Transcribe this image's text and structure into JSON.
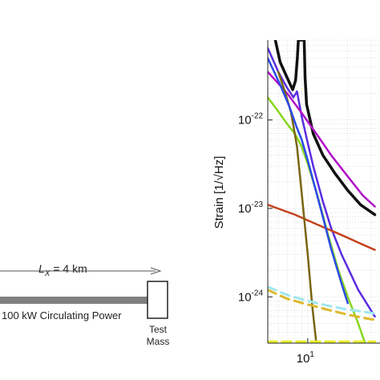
{
  "diagram": {
    "arm_label_var": "L",
    "arm_label_sub": "X",
    "arm_label_value": " = 4 km",
    "power_label": "100 kW Circulating Power",
    "mass_label_line1": "Test",
    "mass_label_line2": "Mass"
  },
  "chart_data": {
    "type": "line",
    "title": "",
    "xlabel": "",
    "ylabel": "Strain [1/√Hz]",
    "x_scale": "log",
    "y_scale": "log",
    "xlim": [
      5,
      35
    ],
    "ylim": [
      3e-25,
      8e-22
    ],
    "grid": true,
    "ytick_labels": [
      {
        "value": 1e-22,
        "base": "10",
        "exp": "-22"
      },
      {
        "value": 1e-23,
        "base": "10",
        "exp": "-23"
      },
      {
        "value": 1e-24,
        "base": "10",
        "exp": "-24"
      }
    ],
    "xtick_labels": [
      {
        "value": 10,
        "base": "10",
        "exp": "1"
      }
    ],
    "series": [
      {
        "color": "#111111",
        "style": "solid",
        "width": 3.5,
        "points": [
          [
            5.7,
            8e-22
          ],
          [
            6.2,
            4.5e-22
          ],
          [
            7,
            3e-22
          ],
          [
            7.7,
            2.2e-22
          ],
          [
            8.1,
            2.8e-22
          ],
          [
            8.35,
            5e-22
          ],
          [
            8.5,
            8e-22
          ],
          [
            9.4,
            8e-22
          ],
          [
            9.55,
            3e-22
          ],
          [
            9.8,
            1.5e-22
          ],
          [
            11,
            7e-23
          ],
          [
            13,
            4e-23
          ],
          [
            16,
            2.5e-23
          ],
          [
            20,
            1.6e-23
          ],
          [
            25,
            1.1e-23
          ],
          [
            32,
            8.5e-24
          ]
        ]
      },
      {
        "color": "#5a2de0",
        "style": "solid",
        "width": 2.5,
        "points": [
          [
            5,
            6.5e-22
          ],
          [
            6,
            3.5e-22
          ],
          [
            7,
            2.3e-22
          ],
          [
            7.8,
            1.8e-22
          ],
          [
            8.3,
            2.1e-22
          ],
          [
            9,
            1.1e-22
          ],
          [
            10,
            5.5e-23
          ],
          [
            11,
            3e-23
          ],
          [
            13,
            1.2e-23
          ],
          [
            15,
            6e-24
          ],
          [
            18,
            3e-24
          ],
          [
            24,
            1.2e-24
          ],
          [
            32,
            6e-25
          ]
        ]
      },
      {
        "color": "#b010c8",
        "style": "solid",
        "width": 2.5,
        "points": [
          [
            5,
            3.5e-22
          ],
          [
            7,
            2e-22
          ],
          [
            9,
            1.2e-22
          ],
          [
            12,
            6.5e-23
          ],
          [
            15,
            4e-23
          ],
          [
            20,
            2.3e-23
          ],
          [
            26,
            1.4e-23
          ],
          [
            32,
            1.05e-23
          ]
        ]
      },
      {
        "color": "#86d61c",
        "style": "solid",
        "width": 2.5,
        "points": [
          [
            5,
            1.8e-22
          ],
          [
            6,
            1.25e-22
          ],
          [
            7,
            9e-23
          ],
          [
            8,
            7e-23
          ],
          [
            9,
            5e-23
          ],
          [
            10,
            3.2e-23
          ],
          [
            12,
            1.3e-23
          ],
          [
            14,
            5.5e-24
          ],
          [
            17,
            2e-24
          ],
          [
            20,
            1e-24
          ],
          [
            24,
            5e-25
          ],
          [
            27,
            3e-25
          ]
        ]
      },
      {
        "color": "#c4421c",
        "style": "solid",
        "width": 2.5,
        "points": [
          [
            5,
            1.1e-23
          ],
          [
            8,
            8.5e-24
          ],
          [
            12,
            6.5e-24
          ],
          [
            18,
            5e-24
          ],
          [
            25,
            4e-24
          ],
          [
            32,
            3.4e-24
          ]
        ]
      },
      {
        "color": "#7a6410",
        "style": "solid",
        "width": 2.5,
        "points": [
          [
            6,
            3.5e-22
          ],
          [
            6.8,
            2e-22
          ],
          [
            7.5,
            1.2e-22
          ],
          [
            8.3,
            5e-23
          ],
          [
            9,
            1.5e-23
          ],
          [
            10,
            3e-24
          ],
          [
            10.8,
            8e-25
          ],
          [
            11.6,
            3e-25
          ]
        ]
      },
      {
        "color": "#2a4ae8",
        "style": "solid",
        "width": 2.5,
        "points": [
          [
            5,
            5e-22
          ],
          [
            6.2,
            2.5e-22
          ],
          [
            7.3,
            1.4e-22
          ],
          [
            8.2,
            8.5e-23
          ],
          [
            9,
            6e-23
          ],
          [
            10,
            3.5e-23
          ],
          [
            11.5,
            1.6e-23
          ],
          [
            13,
            8e-24
          ],
          [
            15,
            3.5e-24
          ],
          [
            18,
            1.4e-24
          ],
          [
            20,
            8.5e-25
          ]
        ]
      },
      {
        "color": "#9ee8f0",
        "style": "dashed",
        "width": 3,
        "points": [
          [
            5,
            1.3e-24
          ],
          [
            7,
            1.05e-24
          ],
          [
            10,
            9e-25
          ],
          [
            15,
            7.8e-25
          ],
          [
            20,
            7.2e-25
          ],
          [
            26,
            6.8e-25
          ],
          [
            32,
            6.5e-25
          ]
        ]
      },
      {
        "color": "#ddb82c",
        "style": "dashed",
        "width": 3,
        "points": [
          [
            5,
            1.2e-24
          ],
          [
            7,
            9.5e-25
          ],
          [
            10,
            8.2e-25
          ],
          [
            15,
            7e-25
          ],
          [
            20,
            6.3e-25
          ],
          [
            26,
            5.8e-25
          ],
          [
            32,
            5.5e-25
          ]
        ]
      },
      {
        "color": "#e8ef2c",
        "style": "dashed",
        "width": 3.5,
        "points": [
          [
            5,
            3.1e-25
          ],
          [
            10,
            3.1e-25
          ],
          [
            20,
            3.1e-25
          ],
          [
            32,
            3.1e-25
          ]
        ]
      }
    ]
  }
}
